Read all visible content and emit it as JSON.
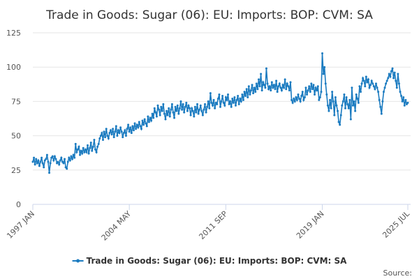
{
  "chart_data": {
    "type": "line",
    "title": "Trade in Goods: Sugar (06): EU: Imports: BOP: CVM: SA",
    "source": "Source:",
    "categories": [
      "1997 JAN",
      null,
      null,
      null,
      null,
      null,
      null,
      null,
      null,
      null,
      null,
      null,
      null,
      null,
      null,
      null,
      null,
      null,
      null,
      null,
      null,
      null,
      null,
      null,
      null,
      null,
      null,
      null,
      null,
      null,
      null,
      null,
      null,
      null,
      null,
      null,
      null,
      null,
      null,
      null,
      null,
      null,
      null,
      null,
      null,
      null,
      null,
      null,
      null,
      null,
      null,
      null,
      null,
      null,
      null,
      null,
      null,
      null,
      null,
      null,
      null,
      null,
      null,
      null,
      null,
      null,
      null,
      null,
      null,
      null,
      null,
      null,
      null,
      null,
      null,
      null,
      null,
      null,
      null,
      null,
      null,
      null,
      null,
      null,
      null,
      null,
      null,
      null,
      "2004 MAY",
      null,
      null,
      null,
      null,
      null,
      null,
      null,
      null,
      null,
      null,
      null,
      null,
      null,
      null,
      null,
      null,
      null,
      null,
      null,
      null,
      null,
      null,
      null,
      null,
      null,
      null,
      null,
      null,
      null,
      null,
      null,
      null,
      null,
      null,
      null,
      null,
      null,
      null,
      null,
      null,
      null,
      null,
      null,
      null,
      null,
      null,
      null,
      null,
      null,
      null,
      null,
      null,
      null,
      null,
      null,
      null,
      null,
      null,
      null,
      null,
      null,
      null,
      null,
      null,
      null,
      null,
      null,
      null,
      null,
      null,
      null,
      null,
      null,
      null,
      null,
      null,
      null,
      null,
      null,
      null,
      null,
      null,
      null,
      null,
      null,
      null,
      null,
      "2011 SEP",
      null,
      null,
      null,
      null,
      null,
      null,
      null,
      null,
      null,
      null,
      null,
      null,
      null,
      null,
      null,
      null,
      null,
      null,
      null,
      null,
      null,
      null,
      null,
      null,
      null,
      null,
      null,
      null,
      null,
      null,
      null,
      null,
      null,
      null,
      null,
      null,
      null,
      null,
      null,
      null,
      null,
      null,
      null,
      null,
      null,
      null,
      null,
      null,
      null,
      null,
      null,
      null,
      null,
      null,
      null,
      null,
      null,
      null,
      null,
      null,
      null,
      null,
      null,
      null,
      null,
      null,
      null,
      null,
      null,
      null,
      null,
      null,
      null,
      null,
      null,
      null,
      null,
      null,
      null,
      null,
      null,
      null,
      null,
      null,
      null,
      null,
      null,
      "2019 JAN",
      null,
      null,
      null,
      null,
      null,
      null,
      null,
      null,
      null,
      null,
      null,
      null,
      null,
      null,
      null,
      null,
      null,
      null,
      null,
      null,
      null,
      null,
      null,
      null,
      null,
      null,
      null,
      null,
      null,
      null,
      null,
      null,
      null,
      null,
      null,
      null,
      null,
      null,
      null,
      null,
      null,
      null,
      null,
      null,
      null,
      null,
      null,
      null,
      null,
      null,
      null,
      null,
      null,
      null,
      null,
      null,
      null,
      null,
      null,
      null,
      null,
      null,
      null,
      null,
      null,
      null,
      null,
      null,
      null,
      null,
      null,
      null,
      null,
      null,
      null,
      null,
      null,
      "2025 JUL"
    ],
    "series": [
      {
        "name": "Trade in Goods: Sugar (06): EU: Imports: BOP: CVM: SA",
        "color": "#1b7bc0",
        "values": [
          31,
          34,
          29,
          33,
          30,
          32,
          28,
          31,
          34,
          30,
          27,
          32,
          33,
          36,
          31,
          23,
          30,
          34,
          35,
          32,
          35,
          33,
          30,
          31,
          29,
          32,
          34,
          31,
          30,
          33,
          27,
          26,
          31,
          34,
          32,
          35,
          33,
          36,
          34,
          44,
          38,
          40,
          42,
          36,
          39,
          37,
          41,
          38,
          40,
          38,
          43,
          37,
          41,
          45,
          39,
          42,
          47,
          40,
          38,
          42,
          44,
          48,
          50,
          52,
          47,
          53,
          49,
          55,
          50,
          48,
          52,
          54,
          51,
          55,
          49,
          53,
          57,
          50,
          54,
          52,
          56,
          53,
          49,
          52,
          54,
          50,
          55,
          58,
          53,
          56,
          52,
          57,
          54,
          59,
          55,
          58,
          56,
          60,
          57,
          55,
          61,
          58,
          62,
          59,
          57,
          64,
          60,
          63,
          61,
          66,
          63,
          70,
          67,
          64,
          72,
          69,
          65,
          71,
          68,
          73,
          66,
          62,
          68,
          65,
          70,
          64,
          69,
          73,
          67,
          63,
          71,
          68,
          72,
          66,
          70,
          75,
          69,
          73,
          67,
          71,
          74,
          68,
          72,
          70,
          65,
          70,
          68,
          64,
          71,
          67,
          73,
          66,
          69,
          72,
          68,
          65,
          69,
          73,
          67,
          71,
          75,
          70,
          81,
          74,
          72,
          76,
          70,
          74,
          73,
          77,
          80,
          71,
          75,
          79,
          74,
          72,
          78,
          76,
          80,
          73,
          75,
          71,
          77,
          74,
          78,
          72,
          76,
          79,
          73,
          77,
          75,
          80,
          76,
          82,
          79,
          84,
          78,
          86,
          80,
          83,
          87,
          81,
          85,
          82,
          88,
          84,
          91,
          86,
          95,
          83,
          89,
          87,
          85,
          99,
          88,
          84,
          86,
          83,
          89,
          85,
          87,
          84,
          90,
          82,
          86,
          88,
          85,
          83,
          87,
          85,
          91,
          84,
          88,
          86,
          83,
          89,
          76,
          74,
          77,
          75,
          78,
          76,
          80,
          77,
          75,
          79,
          82,
          76,
          78,
          85,
          80,
          83,
          86,
          82,
          88,
          84,
          87,
          80,
          85,
          83,
          86,
          76,
          78,
          82,
          110,
          95,
          100,
          88,
          80,
          72,
          68,
          76,
          70,
          82,
          75,
          65,
          78,
          72,
          68,
          60,
          58,
          65,
          72,
          75,
          80,
          70,
          78,
          73,
          70,
          76,
          62,
          85,
          72,
          75,
          68,
          80,
          77,
          74,
          86,
          82,
          88,
          92,
          90,
          86,
          93,
          89,
          91,
          85,
          87,
          90,
          88,
          86,
          84,
          88,
          85,
          82,
          76,
          71,
          66,
          75,
          82,
          85,
          88,
          90,
          92,
          95,
          93,
          97,
          99,
          92,
          96,
          90,
          85,
          95,
          88,
          82,
          79,
          75,
          78,
          72,
          76,
          73,
          74
        ]
      }
    ],
    "ylim": [
      0,
      125
    ],
    "yticks": [
      0,
      25,
      50,
      75,
      100,
      125
    ],
    "grid": true
  }
}
